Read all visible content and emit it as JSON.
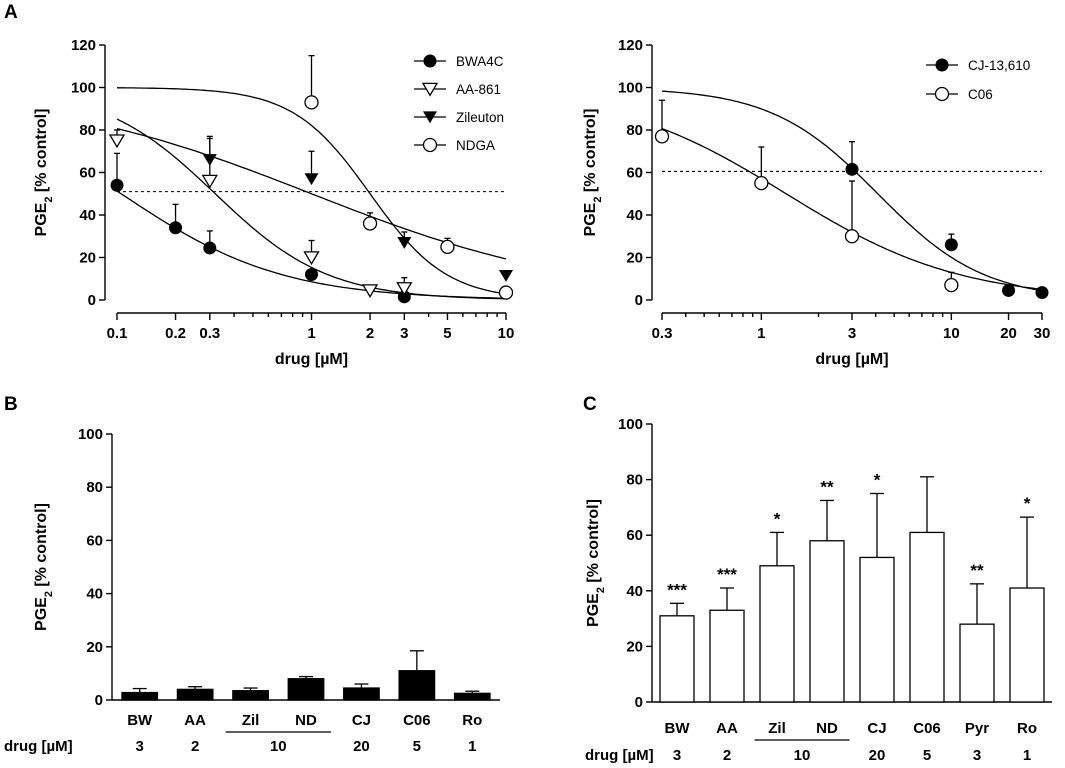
{
  "panels": {
    "A": "A",
    "B": "B",
    "C": "C"
  },
  "colors": {
    "ink": "#000000",
    "bar_filled": "#000000",
    "bar_open": "#ffffff"
  },
  "chart_data": [
    {
      "id": "A-left",
      "type": "line",
      "title": "",
      "xlabel": "drug [µM]",
      "ylabel": "PGE2 [% control]",
      "xscale": "log",
      "xlim": [
        0.1,
        10
      ],
      "ylim": [
        0,
        120
      ],
      "xticks": [
        0.1,
        0.2,
        0.3,
        1,
        2,
        3,
        5,
        10
      ],
      "xtick_labels": [
        "0.1",
        "0.2",
        "0.3",
        "1",
        "2",
        "3",
        "5",
        "10"
      ],
      "yticks": [
        0,
        20,
        40,
        60,
        80,
        100,
        120
      ],
      "ytick_labels": [
        "0",
        "20",
        "40",
        "60",
        "80",
        "100",
        "120"
      ],
      "reference_line": 51,
      "legend_position": "top-right",
      "series": [
        {
          "name": "BWA4C",
          "marker": "filled-circle",
          "x": [
            0.1,
            0.2,
            0.3,
            1,
            3
          ],
          "y": [
            54,
            34,
            24.5,
            12,
            1.5
          ],
          "err": [
            15,
            11,
            8,
            0,
            0
          ],
          "fit": {
            "top": 100,
            "bottom": 0,
            "ic50": 0.105,
            "hill": 1.05
          }
        },
        {
          "name": "AA-861",
          "marker": "open-down-triangle",
          "x": [
            0.1,
            0.3,
            1,
            2,
            3
          ],
          "y": [
            75,
            56,
            20,
            4.5,
            5.5
          ],
          "err": [
            5,
            21,
            8,
            0,
            5
          ],
          "fit": {
            "top": 100,
            "bottom": 0,
            "ic50": 0.32,
            "hill": 1.5
          }
        },
        {
          "name": "Zileuton",
          "marker": "filled-down-triangle",
          "x": [
            0.3,
            1,
            3,
            10
          ],
          "y": [
            66,
            57,
            27,
            11.5
          ],
          "err": [
            10,
            13,
            5,
            0
          ],
          "fit": {
            "top": 100,
            "bottom": 0,
            "ic50": 1.0,
            "hill": 0.62
          }
        },
        {
          "name": "NDGA",
          "marker": "open-circle",
          "x": [
            1,
            2,
            5,
            10
          ],
          "y": [
            93,
            36,
            25,
            3.5
          ],
          "err": [
            22,
            5,
            4,
            0
          ],
          "fit": {
            "top": 100,
            "bottom": 0,
            "ic50": 2.0,
            "hill": 2.2
          }
        }
      ]
    },
    {
      "id": "A-right",
      "type": "line",
      "title": "",
      "xlabel": "drug [µM]",
      "ylabel": "PGE2 [% control]",
      "xscale": "log",
      "xlim": [
        0.3,
        30
      ],
      "ylim": [
        0,
        120
      ],
      "xticks": [
        0.3,
        1,
        3,
        10,
        20,
        30
      ],
      "xtick_labels": [
        "0.3",
        "1",
        "3",
        "10",
        "20",
        "30"
      ],
      "yticks": [
        0,
        20,
        40,
        60,
        80,
        100,
        120
      ],
      "ytick_labels": [
        "0",
        "20",
        "40",
        "60",
        "80",
        "100",
        "120"
      ],
      "reference_line": 60.5,
      "legend_position": "top-right",
      "series": [
        {
          "name": "CJ-13,610",
          "marker": "filled-circle",
          "x": [
            3,
            10,
            20,
            30
          ],
          "y": [
            61.5,
            26,
            4.5,
            3.5
          ],
          "err": [
            13,
            5,
            0,
            0
          ],
          "fit": {
            "top": 100,
            "bottom": 0,
            "ic50": 4.1,
            "hill": 1.55
          }
        },
        {
          "name": "C06",
          "marker": "open-circle",
          "x": [
            0.3,
            1,
            3,
            10
          ],
          "y": [
            77,
            55,
            30,
            7
          ],
          "err": [
            17,
            17,
            26,
            6
          ],
          "fit": {
            "top": 100,
            "bottom": 0,
            "ic50": 1.35,
            "hill": 0.95
          }
        }
      ]
    },
    {
      "id": "B",
      "type": "bar",
      "fill": "filled",
      "title": "",
      "xlabel": "drug [µM]",
      "ylabel": "PGE2 [% control]",
      "ylim": [
        0,
        100
      ],
      "yticks": [
        0,
        20,
        40,
        60,
        80,
        100
      ],
      "ytick_labels": [
        "0",
        "20",
        "40",
        "60",
        "80",
        "100"
      ],
      "categories": [
        "BW",
        "AA",
        "Zil",
        "ND",
        "CJ",
        "C06",
        "Ro"
      ],
      "underlined_categories": [
        "Zil",
        "ND"
      ],
      "doses": [
        "3",
        "2",
        "10",
        "20",
        "5",
        "1"
      ],
      "values": [
        2.8,
        4,
        3.5,
        8,
        4.5,
        11,
        2.5
      ],
      "errors": [
        1.5,
        1,
        1,
        0.8,
        1.5,
        7.5,
        0.8
      ],
      "significance": [
        "",
        "",
        "",
        "",
        "",
        "",
        ""
      ]
    },
    {
      "id": "C",
      "type": "bar",
      "fill": "open",
      "title": "",
      "xlabel": "drug [µM]",
      "ylabel": "PGE2 [% control]",
      "ylim": [
        0,
        100
      ],
      "yticks": [
        0,
        20,
        40,
        60,
        80,
        100
      ],
      "ytick_labels": [
        "0",
        "20",
        "40",
        "60",
        "80",
        "100"
      ],
      "categories": [
        "BW",
        "AA",
        "Zil",
        "ND",
        "CJ",
        "C06",
        "Pyr",
        "Ro"
      ],
      "underlined_categories": [
        "Zil",
        "ND"
      ],
      "doses": [
        "3",
        "2",
        "10",
        "20",
        "5",
        "3",
        "1"
      ],
      "values": [
        31,
        33,
        49,
        58,
        52,
        61,
        28,
        41
      ],
      "errors": [
        4.5,
        8,
        12,
        14.5,
        23,
        20,
        14.5,
        25.5
      ],
      "significance": [
        "***",
        "***",
        "*",
        "**",
        "*",
        "",
        "**",
        "*"
      ]
    }
  ]
}
